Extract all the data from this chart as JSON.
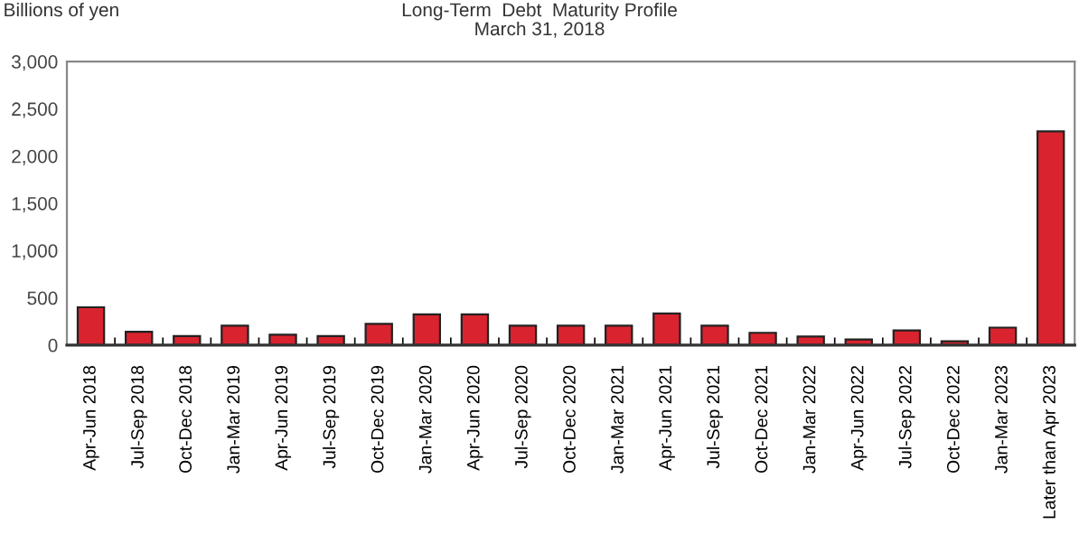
{
  "chart_data": {
    "type": "bar",
    "title": "Long-Term  Debt  Maturity Profile\nMarch 31, 2018",
    "ylabel": "Billions of yen",
    "categories": [
      "Apr-Jun 2018",
      "Jul-Sep 2018",
      "Oct-Dec 2018",
      "Jan-Mar 2019",
      "Apr-Jun 2019",
      "Jul-Sep 2019",
      "Oct-Dec 2019",
      "Jan-Mar 2020",
      "Apr-Jun 2020",
      "Jul-Sep 2020",
      "Oct-Dec 2020",
      "Jan-Mar 2021",
      "Apr-Jun 2021",
      "Jul-Sep 2021",
      "Oct-Dec 2021",
      "Jan-Mar 2022",
      "Apr-Jun 2022",
      "Jul-Sep 2022",
      "Oct-Dec 2022",
      "Jan-Mar 2023",
      "Later than Apr 2023"
    ],
    "values": [
      400,
      140,
      95,
      205,
      110,
      95,
      225,
      325,
      325,
      205,
      205,
      205,
      335,
      205,
      130,
      90,
      60,
      155,
      40,
      185,
      2260
    ],
    "color": "#d9232e",
    "ylim": [
      0,
      3000
    ],
    "yticks": [
      0,
      {
        "value": 500,
        "label": "500"
      },
      {
        "value": 1000,
        "label": "1,000"
      },
      {
        "value": 1500,
        "label": "1,500"
      },
      {
        "value": 2000,
        "label": "2,000"
      },
      {
        "value": 2500,
        "label": "2,500"
      },
      {
        "value": 3000,
        "label": "3,000"
      }
    ],
    "grid": false,
    "legend": false
  }
}
